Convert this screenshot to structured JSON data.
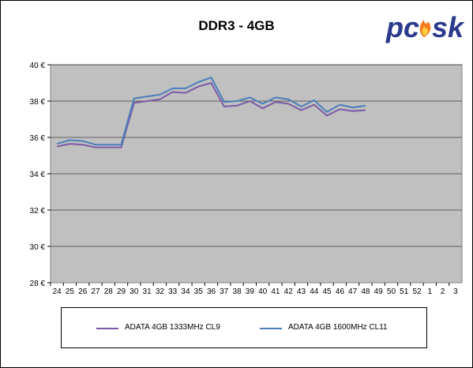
{
  "chart_data": {
    "type": "line",
    "title": "DDR3 - 4GB",
    "categories": [
      "24",
      "25",
      "26",
      "27",
      "28",
      "29",
      "30",
      "31",
      "32",
      "33",
      "34",
      "35",
      "36",
      "37",
      "38",
      "39",
      "40",
      "41",
      "42",
      "43",
      "44",
      "45",
      "46",
      "47",
      "48",
      "49",
      "50",
      "51",
      "52",
      "1",
      "2",
      "3"
    ],
    "y_ticks": [
      "28 €",
      "30 €",
      "32 €",
      "34 €",
      "36 €",
      "38 €",
      "40 €"
    ],
    "ylim": [
      28,
      40
    ],
    "grid": true,
    "legend_position": "bottom",
    "series": [
      {
        "name": "ADATA 4GB 1333MHz CL9",
        "color": "#7b5aa6",
        "values": [
          35.5,
          35.65,
          35.6,
          35.45,
          35.45,
          35.45,
          37.9,
          38.0,
          38.1,
          38.5,
          38.45,
          38.8,
          39.0,
          37.7,
          37.75,
          38.0,
          37.6,
          37.95,
          37.85,
          37.5,
          37.8,
          37.2,
          37.55,
          37.45,
          37.5,
          null,
          null,
          null,
          null,
          null,
          null,
          null
        ]
      },
      {
        "name": "ADATA 4GB 1600MHz CL11",
        "color": "#4a7ebb",
        "values": [
          35.65,
          35.85,
          35.8,
          35.6,
          35.6,
          35.6,
          38.15,
          38.25,
          38.35,
          38.7,
          38.7,
          39.05,
          39.3,
          37.95,
          38.0,
          38.2,
          37.85,
          38.2,
          38.1,
          37.7,
          38.05,
          37.4,
          37.8,
          37.65,
          37.75,
          null,
          null,
          null,
          null,
          null,
          null,
          null
        ]
      }
    ]
  },
  "logo": {
    "text": "pcsk",
    "colors": {
      "p": "#2b3a8c",
      "flame": "#f47a20"
    }
  }
}
